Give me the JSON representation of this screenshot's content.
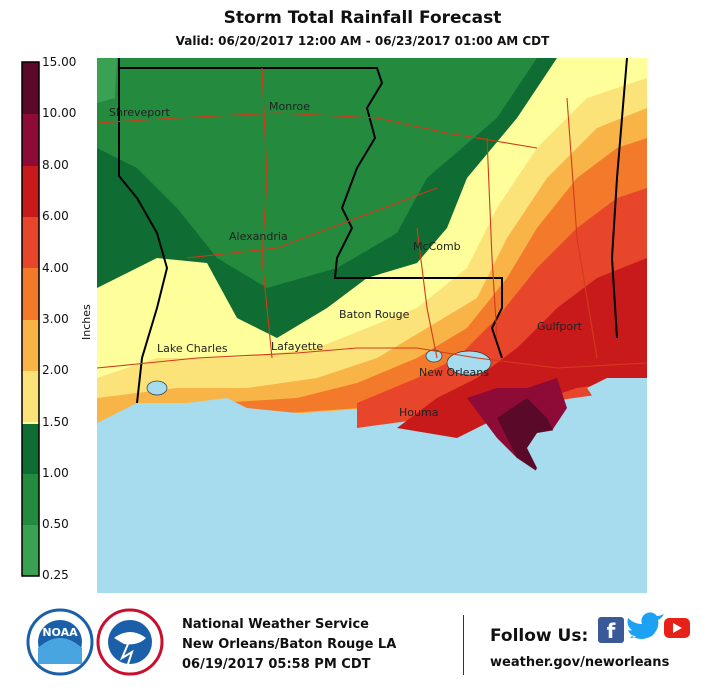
{
  "title": "Storm Total Rainfall Forecast",
  "subtitle": "Valid: 06/20/2017 12:00 AM - 06/23/2017 01:00 AM CDT",
  "legend": {
    "unit_label": "Inches",
    "bins": [
      {
        "label": "15.00",
        "color": "#5a0a28"
      },
      {
        "label": "10.00",
        "color": "#8e0b37"
      },
      {
        "label": "8.00",
        "color": "#c81a1a"
      },
      {
        "label": "6.00",
        "color": "#e8462a"
      },
      {
        "label": "4.00",
        "color": "#f37a2b"
      },
      {
        "label": "3.00",
        "color": "#f8b446"
      },
      {
        "label": "2.00",
        "color": "#fbe37a"
      },
      {
        "label": "1.50",
        "color": "#fefe9a"
      },
      {
        "label": "1.00",
        "color": "#0f6c33"
      },
      {
        "label": "0.50",
        "color": "#238a3e"
      },
      {
        "label": "0.25",
        "color": "#3aa152"
      }
    ],
    "bottom_color": "#6dc06d"
  },
  "map": {
    "water_color": "#a6dcee",
    "cities": [
      {
        "name": "Shreveport"
      },
      {
        "name": "Monroe"
      },
      {
        "name": "Alexandria"
      },
      {
        "name": "McComb"
      },
      {
        "name": "Baton Rouge"
      },
      {
        "name": "Lake Charles"
      },
      {
        "name": "Lafayette"
      },
      {
        "name": "New Orleans"
      },
      {
        "name": "Gulfport"
      },
      {
        "name": "Houma"
      }
    ]
  },
  "footer": {
    "agency": "National Weather Service",
    "office": "New Orleans/Baton Rouge LA",
    "issued": "06/19/2017 05:58 PM CDT",
    "follow": "Follow Us:",
    "website": "weather.gov/neworleans",
    "noaa_logo_text": "NOAA",
    "nws_logo_text": "NATIONAL WEATHER SERVICE"
  }
}
